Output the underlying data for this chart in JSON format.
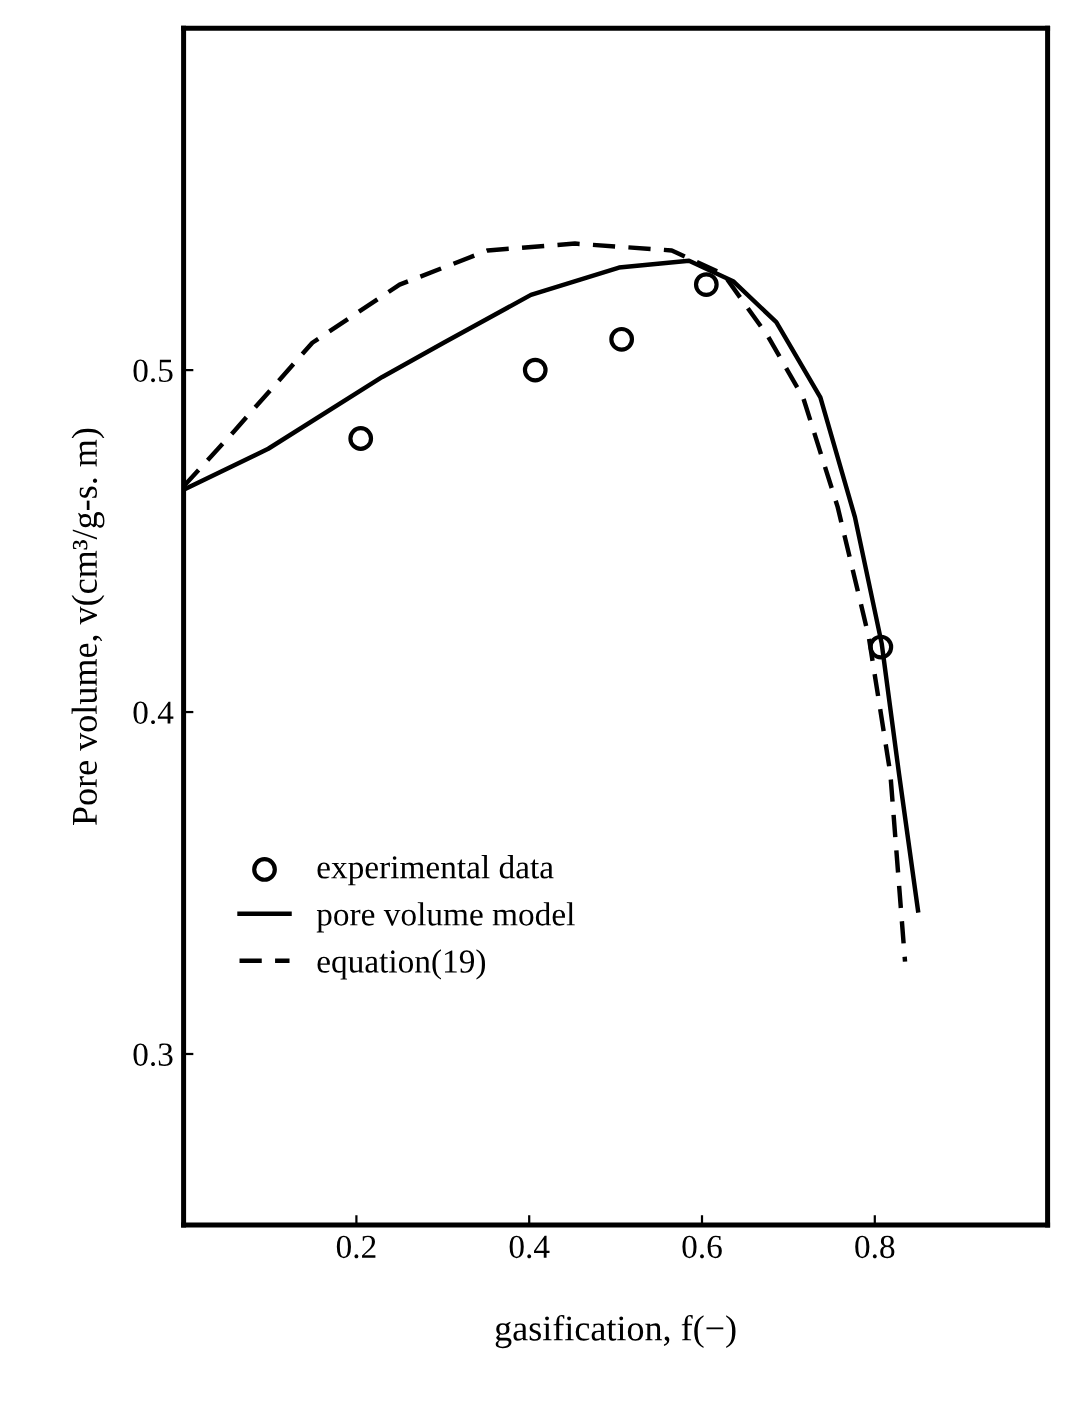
{
  "chart_data": {
    "type": "line",
    "xlabel": "gasification, f(−)",
    "ylabel": "Pore volume, v(cm³/g-s. m)",
    "xlim": [
      0,
      1.0
    ],
    "ylim": [
      0.25,
      0.6
    ],
    "xticks": [
      0.2,
      0.4,
      0.6,
      0.8
    ],
    "yticks": [
      0.3,
      0.4,
      0.5
    ],
    "grid": false,
    "legend": "bottom left",
    "series": [
      {
        "name": "experimental data",
        "type": "scatter",
        "marker": "circle",
        "color": "#000000",
        "x": [
          0.205,
          0.407,
          0.507,
          0.605,
          0.807
        ],
        "values": [
          0.48,
          0.5,
          0.509,
          0.525,
          0.419
        ]
      },
      {
        "name": "pore volume model",
        "line_style": "solid",
        "color": "#000000",
        "x": [
          0,
          0.098,
          0.23,
          0.301,
          0.402,
          0.504,
          0.585,
          0.636,
          0.686,
          0.737,
          0.777,
          0.808,
          0.828,
          0.85
        ],
        "values": [
          0.465,
          0.477,
          0.498,
          0.508,
          0.522,
          0.53,
          0.532,
          0.526,
          0.514,
          0.492,
          0.457,
          0.42,
          0.382,
          0.342
        ]
      },
      {
        "name": "equation(19)",
        "line_style": "dashed",
        "color": "#000000",
        "x": [
          0,
          0.058,
          0.149,
          0.25,
          0.352,
          0.453,
          0.565,
          0.625,
          0.676,
          0.717,
          0.757,
          0.793,
          0.818,
          0.835
        ],
        "values": [
          0.466,
          0.482,
          0.508,
          0.525,
          0.535,
          0.537,
          0.535,
          0.528,
          0.51,
          0.492,
          0.46,
          0.422,
          0.382,
          0.327
        ]
      }
    ]
  }
}
